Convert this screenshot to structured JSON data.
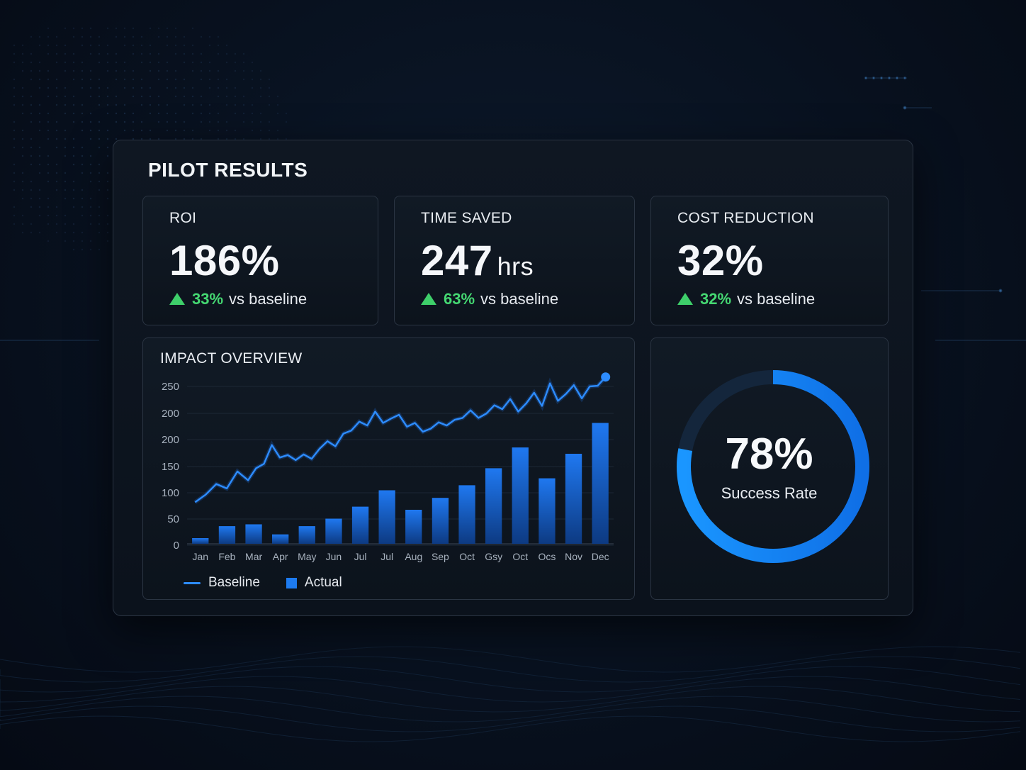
{
  "panel": {
    "title": "PILOT RESULTS"
  },
  "kpis": [
    {
      "label": "ROI",
      "value": "186%",
      "unit": "",
      "delta": "33%",
      "delta_suffix": "vs baseline"
    },
    {
      "label": "TIME SAVED",
      "value": "247",
      "unit": "hrs",
      "delta": "63%",
      "delta_suffix": "vs baseline"
    },
    {
      "label": "COST REDUCTION",
      "value": "32%",
      "unit": "",
      "delta": "32%",
      "delta_suffix": "vs baseline"
    }
  ],
  "impact": {
    "title": "IMPACT OVERVIEW",
    "legend": {
      "line": "Baseline",
      "bar": "Actual"
    }
  },
  "success": {
    "value": "78%",
    "label": "Success Rate",
    "fraction": 0.78
  },
  "colors": {
    "accent": "#2d8cff",
    "positive": "#45d872",
    "bar": "#1d6fe0"
  },
  "chart_data": {
    "type": "bar",
    "categories": [
      "Jan",
      "Feb",
      "Mar",
      "Apr",
      "May",
      "Jun",
      "Jul",
      "Jul",
      "Aug",
      "Sep",
      "Oct",
      "Gsy",
      "Oct",
      "Ocs",
      "Nov",
      "Dec"
    ],
    "series": [
      {
        "name": "Actual",
        "type": "bar",
        "values": [
          9,
          28,
          31,
          15,
          28,
          40,
          59,
          85,
          54,
          73,
          93,
          120,
          153,
          104,
          143,
          192
        ]
      },
      {
        "name": "Baseline",
        "type": "line",
        "x": [
          0,
          0.4,
          0.8,
          1.2,
          1.6,
          2.0,
          2.3,
          2.6,
          2.9,
          3.2,
          3.5,
          3.8,
          4.1,
          4.4,
          4.7,
          5.0,
          5.3,
          5.6,
          5.9,
          6.2,
          6.5,
          6.8,
          7.1,
          7.4,
          7.7,
          8.0,
          8.3,
          8.6,
          8.9,
          9.2,
          9.5,
          9.8,
          10.1,
          10.4,
          10.7,
          11.0,
          11.3,
          11.6,
          11.9,
          12.2,
          12.5,
          12.8,
          13.1,
          13.4,
          13.7,
          14.0,
          14.3,
          14.6,
          14.9,
          15.2,
          15.5
        ],
        "values": [
          66,
          78,
          95,
          88,
          115,
          101,
          120,
          127,
          157,
          137,
          141,
          133,
          142,
          135,
          151,
          163,
          155,
          175,
          180,
          194,
          188,
          210,
          192,
          199,
          205,
          186,
          192,
          178,
          183,
          193,
          188,
          197,
          200,
          212,
          200,
          207,
          220,
          214,
          230,
          210,
          223,
          240,
          219,
          255,
          227,
          238,
          252,
          231,
          250,
          251,
          265
        ]
      }
    ],
    "ylim": [
      0,
      250
    ],
    "yticks": [
      "250",
      "200",
      "200",
      "150",
      "100",
      "50",
      "0"
    ],
    "grid": true,
    "legend_position": "bottom-left"
  }
}
